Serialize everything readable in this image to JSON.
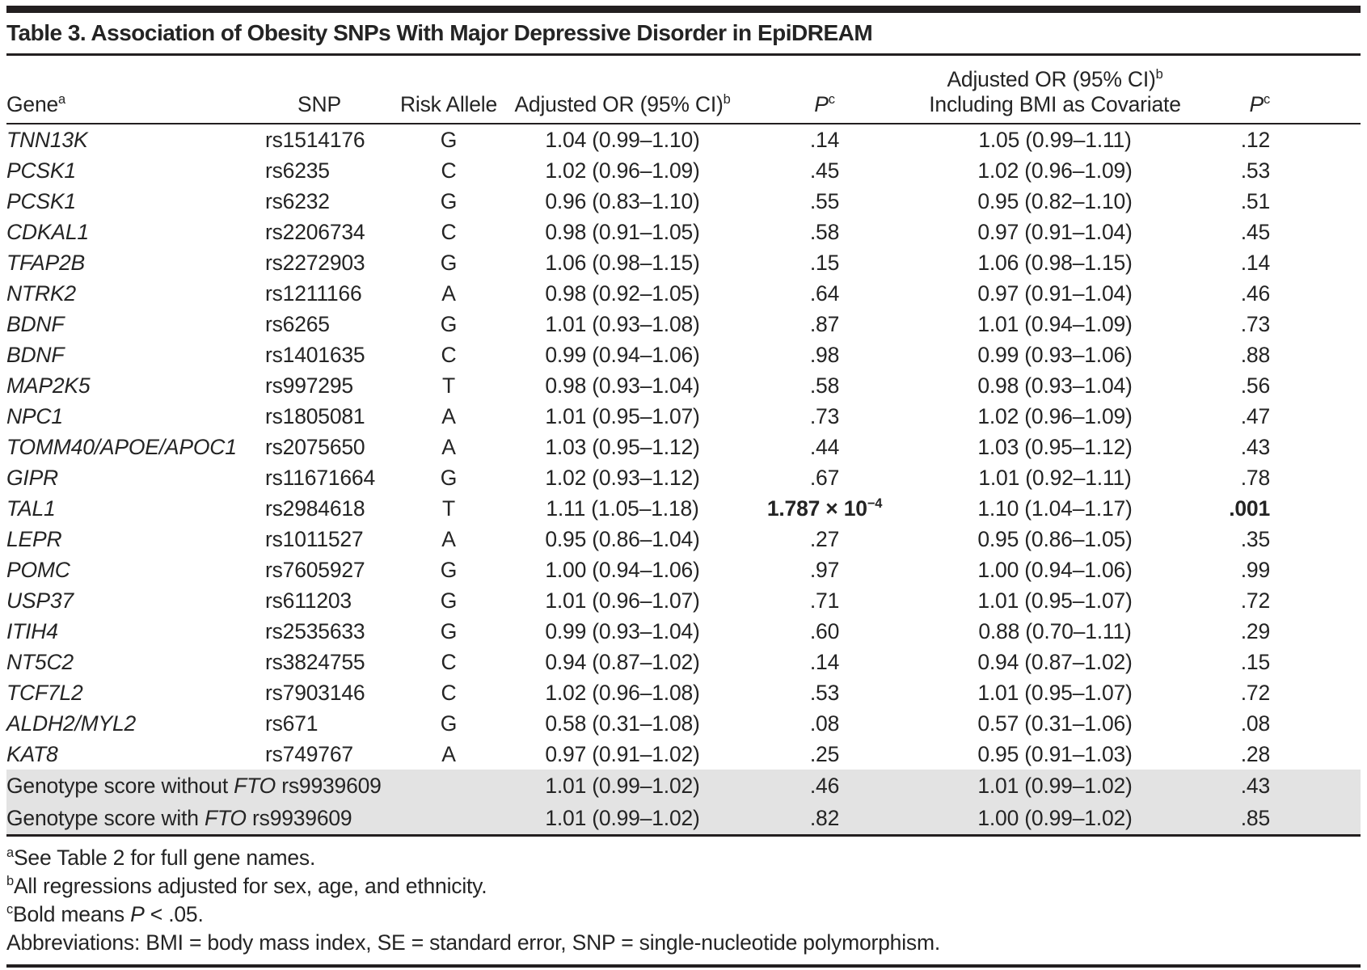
{
  "title": "Table 3. Association of Obesity SNPs With Major Depressive Disorder in EpiDREAM",
  "columns": {
    "gene": {
      "label": "Gene",
      "sup": "a"
    },
    "snp": {
      "label": "SNP"
    },
    "risk_allele": {
      "label": "Risk Allele"
    },
    "adjusted_or": {
      "label": "Adjusted OR (95% CI)",
      "sup": "b"
    },
    "p1": {
      "label": "P",
      "sup": "c"
    },
    "adjusted_or_bmi": {
      "line1": "Adjusted OR (95% CI)",
      "line1_sup": "b",
      "line2": "Including BMI as Covariate"
    },
    "p2": {
      "label": "P",
      "sup": "c"
    }
  },
  "rows": [
    {
      "gene": "TNN13K",
      "snp": "rs1514176",
      "allele": "G",
      "or1": "1.04 (0.99–1.10)",
      "p1": ".14",
      "or2": "1.05 (0.99–1.11)",
      "p2": ".12"
    },
    {
      "gene": "PCSK1",
      "snp": "rs6235",
      "allele": "C",
      "or1": "1.02 (0.96–1.09)",
      "p1": ".45",
      "or2": "1.02 (0.96–1.09)",
      "p2": ".53"
    },
    {
      "gene": "PCSK1",
      "snp": "rs6232",
      "allele": "G",
      "or1": "0.96 (0.83–1.10)",
      "p1": ".55",
      "or2": "0.95 (0.82–1.10)",
      "p2": ".51"
    },
    {
      "gene": "CDKAL1",
      "snp": "rs2206734",
      "allele": "C",
      "or1": "0.98 (0.91–1.05)",
      "p1": ".58",
      "or2": "0.97 (0.91–1.04)",
      "p2": ".45"
    },
    {
      "gene": "TFAP2B",
      "snp": "rs2272903",
      "allele": "G",
      "or1": "1.06 (0.98–1.15)",
      "p1": ".15",
      "or2": "1.06 (0.98–1.15)",
      "p2": ".14"
    },
    {
      "gene": "NTRK2",
      "snp": "rs1211166",
      "allele": "A",
      "or1": "0.98 (0.92–1.05)",
      "p1": ".64",
      "or2": "0.97 (0.91–1.04)",
      "p2": ".46"
    },
    {
      "gene": "BDNF",
      "snp": "rs6265",
      "allele": "G",
      "or1": "1.01 (0.93–1.08)",
      "p1": ".87",
      "or2": "1.01 (0.94–1.09)",
      "p2": ".73"
    },
    {
      "gene": "BDNF",
      "snp": "rs1401635",
      "allele": "C",
      "or1": "0.99 (0.94–1.06)",
      "p1": ".98",
      "or2": "0.99 (0.93–1.06)",
      "p2": ".88"
    },
    {
      "gene": "MAP2K5",
      "snp": "rs997295",
      "allele": "T",
      "or1": "0.98 (0.93–1.04)",
      "p1": ".58",
      "or2": "0.98 (0.93–1.04)",
      "p2": ".56"
    },
    {
      "gene": "NPC1",
      "snp": "rs1805081",
      "allele": "A",
      "or1": "1.01 (0.95–1.07)",
      "p1": ".73",
      "or2": "1.02 (0.96–1.09)",
      "p2": ".47"
    },
    {
      "gene": "TOMM40/APOE/APOC1",
      "snp": "rs2075650",
      "allele": "A",
      "or1": "1.03 (0.95–1.12)",
      "p1": ".44",
      "or2": "1.03 (0.95–1.12)",
      "p2": ".43"
    },
    {
      "gene": "GIPR",
      "snp": "rs11671664",
      "allele": "G",
      "or1": "1.02 (0.93–1.12)",
      "p1": ".67",
      "or2": "1.01 (0.92–1.11)",
      "p2": ".78"
    },
    {
      "gene": "TAL1",
      "snp": "rs2984618",
      "allele": "T",
      "or1": "1.11 (1.05–1.18)",
      "p1": "1.787 × 10",
      "p1_sup": "−4",
      "p1_bold": true,
      "or2": "1.10 (1.04–1.17)",
      "p2": ".001",
      "p2_bold": true
    },
    {
      "gene": "LEPR",
      "snp": "rs1011527",
      "allele": "A",
      "or1": "0.95 (0.86–1.04)",
      "p1": ".27",
      "or2": "0.95 (0.86–1.05)",
      "p2": ".35"
    },
    {
      "gene": "POMC",
      "snp": "rs7605927",
      "allele": "G",
      "or1": "1.00 (0.94–1.06)",
      "p1": ".97",
      "or2": "1.00 (0.94–1.06)",
      "p2": ".99"
    },
    {
      "gene": "USP37",
      "snp": "rs611203",
      "allele": "G",
      "or1": "1.01 (0.96–1.07)",
      "p1": ".71",
      "or2": "1.01 (0.95–1.07)",
      "p2": ".72"
    },
    {
      "gene": "ITIH4",
      "snp": "rs2535633",
      "allele": "G",
      "or1": "0.99 (0.93–1.04)",
      "p1": ".60",
      "or2": "0.88 (0.70–1.11)",
      "p2": ".29"
    },
    {
      "gene": "NT5C2",
      "snp": "rs3824755",
      "allele": "C",
      "or1": "0.94 (0.87–1.02)",
      "p1": ".14",
      "or2": "0.94 (0.87–1.02)",
      "p2": ".15"
    },
    {
      "gene": "TCF7L2",
      "snp": "rs7903146",
      "allele": "C",
      "or1": "1.02 (0.96–1.08)",
      "p1": ".53",
      "or2": "1.01 (0.95–1.07)",
      "p2": ".72"
    },
    {
      "gene": "ALDH2/MYL2",
      "snp": "rs671",
      "allele": "G",
      "or1": "0.58 (0.31–1.08)",
      "p1": ".08",
      "or2": "0.57 (0.31–1.06)",
      "p2": ".08"
    },
    {
      "gene": "KAT8",
      "snp": "rs749767",
      "allele": "A",
      "or1": "0.97 (0.91–1.02)",
      "p1": ".25",
      "or2": "0.95 (0.91–1.03)",
      "p2": ".28"
    }
  ],
  "summary_rows": [
    {
      "label_pre": "Genotype score without ",
      "label_italic": "FTO",
      "label_post": " rs9939609",
      "or1": "1.01 (0.99–1.02)",
      "p1": ".46",
      "or2": "1.01 (0.99–1.02)",
      "p2": ".43"
    },
    {
      "label_pre": "Genotype score with ",
      "label_italic": "FTO",
      "label_post": " rs9939609",
      "or1": "1.01 (0.99–1.02)",
      "p1": ".82",
      "or2": "1.00 (0.99–1.02)",
      "p2": ".85"
    }
  ],
  "footnotes": [
    {
      "sup": "a",
      "text": "See Table 2 for full gene names."
    },
    {
      "sup": "b",
      "text": "All regressions adjusted for sex, age, and ethnicity."
    },
    {
      "sup": "c",
      "pre": "Bold means ",
      "italic": "P",
      "post": " < .05."
    },
    {
      "text": "Abbreviations: BMI = body mass index, SE = standard error, SNP = single-nucleotide polymorphism."
    }
  ],
  "colors": {
    "text": "#242424",
    "rule": "#231f20",
    "summary_row_bg": "#e3e3e3",
    "page_bg": "#ffffff"
  }
}
